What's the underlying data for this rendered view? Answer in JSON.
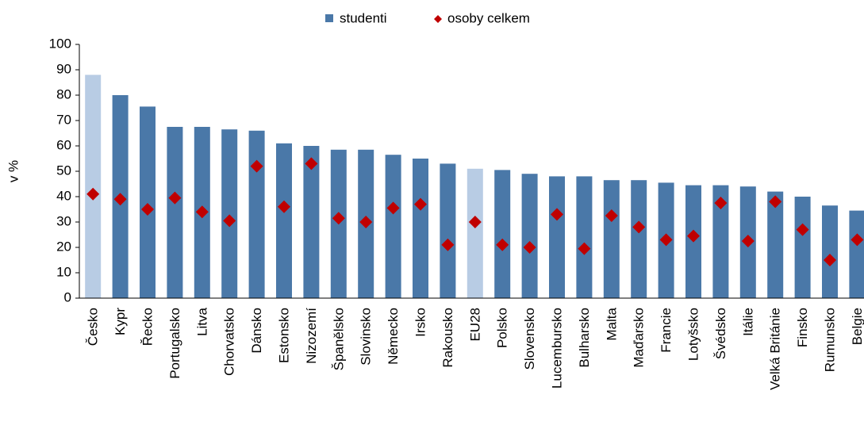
{
  "chart_data": {
    "type": "bar",
    "categories": [
      "Česko",
      "Kypr",
      "Řecko",
      "Portugalsko",
      "Litva",
      "Chorvatsko",
      "Dánsko",
      "Estonsko",
      "Nizozemí",
      "Španělsko",
      "Slovinsko",
      "Německo",
      "Irsko",
      "Rakousko",
      "EU28",
      "Polsko",
      "Slovensko",
      "Lucembursko",
      "Bulharsko",
      "Malta",
      "Maďarsko",
      "Francie",
      "Lotyšsko",
      "Švédsko",
      "Itálie",
      "Velká Británie",
      "Finsko",
      "Rumunsko",
      "Belgie"
    ],
    "series": [
      {
        "name": "studenti",
        "color": "#4a78a8",
        "colors": [
          "#b8cce4",
          "#4a78a8",
          "#4a78a8",
          "#4a78a8",
          "#4a78a8",
          "#4a78a8",
          "#4a78a8",
          "#4a78a8",
          "#4a78a8",
          "#4a78a8",
          "#4a78a8",
          "#4a78a8",
          "#4a78a8",
          "#4a78a8",
          "#b8cce4",
          "#4a78a8",
          "#4a78a8",
          "#4a78a8",
          "#4a78a8",
          "#4a78a8",
          "#4a78a8",
          "#4a78a8",
          "#4a78a8",
          "#4a78a8",
          "#4a78a8",
          "#4a78a8",
          "#4a78a8",
          "#4a78a8",
          "#4a78a8"
        ],
        "values": [
          88,
          80,
          75.5,
          67.5,
          67.5,
          66.5,
          66,
          61,
          60,
          58.5,
          58.5,
          56.5,
          55,
          53,
          51,
          50.5,
          49,
          48,
          48,
          46.5,
          46.5,
          45.5,
          44.5,
          44.5,
          44,
          42,
          40,
          36.5,
          34.5
        ]
      },
      {
        "name": "osoby celkem",
        "color": "#c00000",
        "marker": "diamond",
        "values": [
          41,
          39,
          35,
          39.5,
          34,
          30.5,
          52,
          36,
          53,
          31.5,
          30,
          35.5,
          37,
          21,
          30,
          21,
          20,
          33,
          19.5,
          32.5,
          28,
          23,
          24.5,
          37.5,
          22.5,
          38,
          27,
          15,
          23
        ]
      }
    ],
    "y_label": "v %",
    "ylim": [
      0,
      100
    ],
    "yticks": [
      0,
      10,
      20,
      30,
      40,
      50,
      60,
      70,
      80,
      90,
      100
    ],
    "legend": "top"
  }
}
